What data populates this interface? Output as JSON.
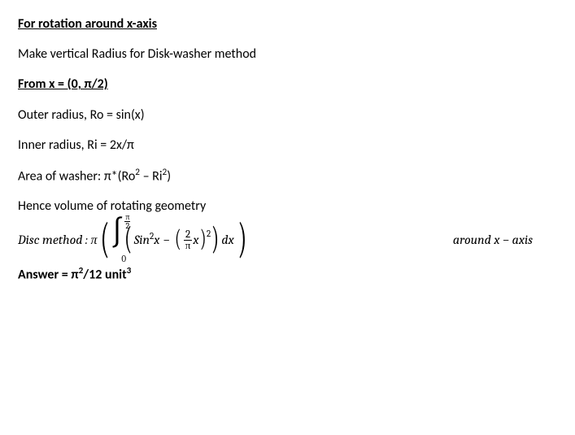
{
  "heading1": "For rotation around x-axis",
  "line1": "Make vertical Radius for Disk-washer method",
  "heading2": "From x = (0, π/2)",
  "line2": "Outer radius, Ro = sin(x)",
  "line3": "Inner radius, Ri = 2x/π",
  "line4_pre": "Area of washer:  π*(Ro",
  "line4_mid": " – Ri",
  "line4_end": ")",
  "line5": "Hence volume of rotating geometry",
  "formula": {
    "label": "Disc method  :  π",
    "int_upper_num": "π",
    "int_upper_den": "2",
    "int_lower": "0",
    "sin": "Sin",
    "x": "x",
    "minus": "−",
    "frac_num": "2",
    "frac_den": "π",
    "dx": "dx",
    "right": "around x − axis"
  },
  "answer_pre": "Answer = π",
  "answer_mid": "/12 unit"
}
